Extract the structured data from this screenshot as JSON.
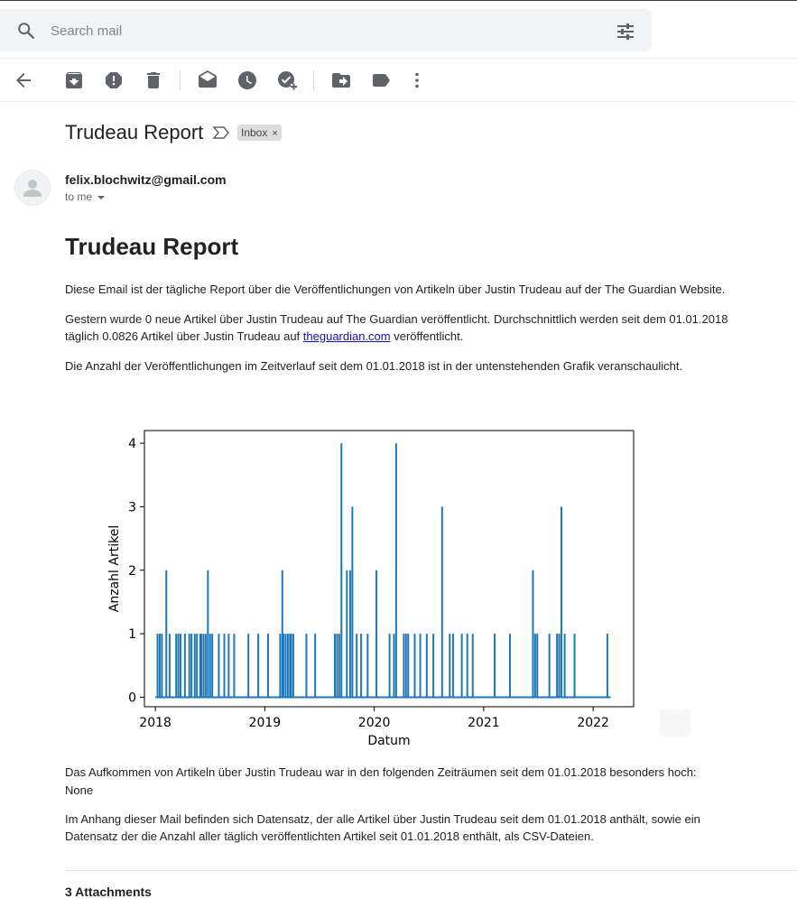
{
  "search": {
    "placeholder": "Search mail"
  },
  "toolbar": {
    "items": [
      {
        "name": "back-arrow-icon"
      },
      {
        "name": "archive-icon"
      },
      {
        "name": "report-spam-icon"
      },
      {
        "name": "delete-icon"
      },
      {
        "name": "mark-unread-icon"
      },
      {
        "name": "snooze-icon"
      },
      {
        "name": "add-to-tasks-icon"
      },
      {
        "name": "move-to-icon"
      },
      {
        "name": "label-icon"
      },
      {
        "name": "more-vert-icon"
      }
    ]
  },
  "message": {
    "subject": "Trudeau Report",
    "label": "Inbox",
    "label_close": "×",
    "sender": "felix.blochwitz@gmail.com",
    "recipient": "to me"
  },
  "body": {
    "heading": "Trudeau Report",
    "p1": "Diese Email ist der tägliche Report über die Veröffentlichungen von Artikeln über Justin Trudeau auf der The Guardian Website.",
    "p2_before": "Gestern wurde 0 neue Artikel über Justin Trudeau auf The Guardian veröffentlicht. Durchschnittlich werden seit dem 01.01.2018 täglich 0.0826 Artikel über Justin Trudeau auf ",
    "p2_link": "theguardian.com",
    "p2_after": " veröffentlicht.",
    "p3": "Die Anzahl der Veröffentlichungen im Zeitverlauf seit dem 01.01.2018 ist in der untenstehenden Grafik veranschaulicht.",
    "p4": "Das Aufkommen von Artikeln über Justin Trudeau war in den folgenden Zeiträumen seit dem 01.01.2018 besonders hoch:",
    "p4_value": "None",
    "p5": "Im Anhang dieser Mail befinden sich Datensatz, der alle Artikel über Justin Trudeau seit dem 01.01.2018 anthält, sowie ein Datensatz der die Anzahl aller täglich veröffentlichten Artikel seit 01.01.2018 enthält, als CSV-Dateien."
  },
  "attachments": {
    "title": "3 Attachments"
  },
  "colors": {
    "series": "#1f77b4",
    "link": "#1a0dab",
    "search_bg": "#f1f3f4"
  },
  "chart_data": {
    "type": "line",
    "xlabel": "Datum",
    "ylabel": "Anzahl Artikel",
    "x_unit": "year",
    "xlim": [
      2017.9,
      2022.37
    ],
    "ylim": [
      -0.15,
      4.2
    ],
    "xticks": [
      2018,
      2019,
      2020,
      2021,
      2022
    ],
    "xtick_labels": [
      "2018",
      "2019",
      "2020",
      "2021",
      "2022"
    ],
    "yticks": [
      0,
      1,
      2,
      3,
      4
    ],
    "ytick_labels": [
      "0",
      "1",
      "2",
      "3",
      "4"
    ],
    "grid": false,
    "range_x": [
      2018.0,
      2022.16
    ],
    "series": [
      {
        "x": [
          2018.02,
          2018.04,
          2018.06,
          2018.1,
          2018.13,
          2018.19,
          2018.21,
          2018.23,
          2018.27,
          2018.31,
          2018.33,
          2018.36,
          2018.38,
          2018.41,
          2018.42,
          2018.44,
          2018.46,
          2018.48,
          2018.5,
          2018.52,
          2018.58,
          2018.63,
          2018.67,
          2018.72,
          2018.85,
          2018.94,
          2019.03,
          2019.14,
          2019.16,
          2019.17,
          2019.19,
          2019.21,
          2019.23,
          2019.24,
          2019.26,
          2019.38,
          2019.46,
          2019.64,
          2019.66,
          2019.68,
          2019.7,
          2019.75,
          2019.78,
          2019.8,
          2019.84,
          2019.88,
          2019.94,
          2020.02,
          2020.14,
          2020.18,
          2020.2,
          2020.27,
          2020.29,
          2020.31,
          2020.37,
          2020.42,
          2020.48,
          2020.54,
          2020.62,
          2020.69,
          2020.72,
          2020.8,
          2020.85,
          2020.9,
          2021.1,
          2021.24,
          2021.45,
          2021.47,
          2021.49,
          2021.6,
          2021.67,
          2021.69,
          2021.71,
          2021.74,
          2021.83,
          2022.13
        ],
        "values": [
          1,
          1,
          1,
          2,
          1,
          1,
          1,
          1,
          1,
          1,
          1,
          1,
          1,
          1,
          1,
          1,
          1,
          2,
          1,
          1,
          1,
          1,
          1,
          1,
          1,
          1,
          1,
          1,
          2,
          1,
          1,
          1,
          1,
          1,
          1,
          1,
          1,
          1,
          1,
          1,
          4,
          2,
          2,
          3,
          1,
          1,
          1,
          2,
          1,
          1,
          4,
          1,
          1,
          1,
          1,
          1,
          1,
          1,
          3,
          1,
          1,
          1,
          1,
          1,
          1,
          1,
          2,
          1,
          1,
          1,
          1,
          1,
          3,
          1,
          1,
          1
        ]
      }
    ]
  }
}
